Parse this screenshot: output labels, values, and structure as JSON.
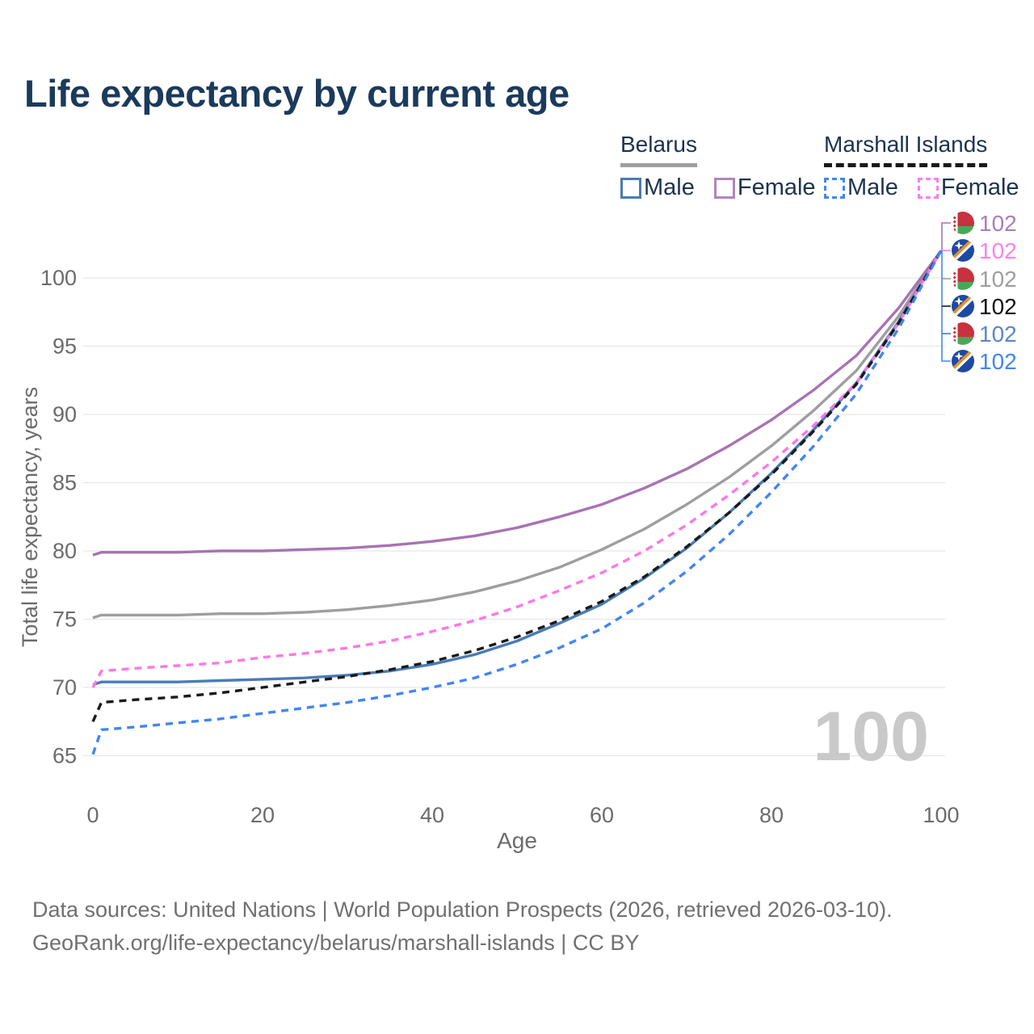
{
  "title": "Life expectancy by current age",
  "watermark_age": "100",
  "legend": {
    "groups": [
      {
        "name": "Belarus",
        "line_style": "solid",
        "underline_color": "#9e9e9e",
        "items": [
          {
            "label": "Male",
            "color": "#4a7bb7",
            "dashed": false
          },
          {
            "label": "Female",
            "color": "#b185bb",
            "dashed": false
          }
        ]
      },
      {
        "name": "Marshall Islands",
        "line_style": "dashed",
        "underline_color": "#1a1a1a",
        "items": [
          {
            "label": "Male",
            "color": "#4285f4",
            "dashed": true
          },
          {
            "label": "Female",
            "color": "#fc7ef0",
            "dashed": true
          }
        ]
      }
    ]
  },
  "chart_data": {
    "type": "line",
    "title": "Life expectancy by current age",
    "xlabel": "Age",
    "ylabel": "Total life expectancy, years",
    "xlim": [
      0,
      100
    ],
    "ylim": [
      65,
      102
    ],
    "x_ticks": [
      0,
      20,
      40,
      60,
      80,
      100
    ],
    "y_ticks": [
      65,
      70,
      75,
      80,
      85,
      90,
      95,
      100
    ],
    "grid": "horizontal",
    "legend_position": "top-right",
    "x": [
      0,
      1,
      5,
      10,
      15,
      20,
      25,
      30,
      35,
      40,
      45,
      50,
      55,
      60,
      65,
      70,
      75,
      80,
      85,
      90,
      95,
      100
    ],
    "series": [
      {
        "name": "Belarus — Both sexes",
        "country": "Belarus",
        "sex": "Both",
        "color": "#9e9e9e",
        "dash": false,
        "values": [
          75.1,
          75.3,
          75.3,
          75.3,
          75.4,
          75.4,
          75.5,
          75.7,
          76.0,
          76.4,
          77.0,
          77.8,
          78.8,
          80.1,
          81.6,
          83.4,
          85.4,
          87.7,
          90.3,
          93.2,
          97.2,
          102
        ]
      },
      {
        "name": "Belarus — Female",
        "country": "Belarus",
        "sex": "Female",
        "color": "#a873b3",
        "dash": false,
        "values": [
          79.7,
          79.9,
          79.9,
          79.9,
          80.0,
          80.0,
          80.1,
          80.2,
          80.4,
          80.7,
          81.1,
          81.7,
          82.5,
          83.4,
          84.6,
          86.0,
          87.7,
          89.6,
          91.8,
          94.3,
          97.8,
          102
        ]
      },
      {
        "name": "Belarus — Male",
        "country": "Belarus",
        "sex": "Male",
        "color": "#4a7bb7",
        "dash": false,
        "values": [
          70.2,
          70.4,
          70.4,
          70.4,
          70.5,
          70.6,
          70.7,
          70.9,
          71.2,
          71.7,
          72.4,
          73.4,
          74.7,
          76.1,
          78.0,
          80.2,
          82.8,
          85.7,
          88.9,
          92.3,
          96.8,
          102
        ]
      },
      {
        "name": "Marshall Islands — Female",
        "country": "Marshall Islands",
        "sex": "Female",
        "color": "#fb78e8",
        "dash": true,
        "values": [
          70.0,
          71.2,
          71.4,
          71.6,
          71.8,
          72.2,
          72.5,
          72.9,
          73.4,
          74.1,
          74.9,
          75.9,
          77.1,
          78.4,
          80.0,
          81.9,
          84.1,
          86.5,
          89.2,
          92.3,
          96.7,
          102
        ]
      },
      {
        "name": "Marshall Islands — Both sexes",
        "country": "Marshall Islands",
        "sex": "Both",
        "color": "#1a1a1a",
        "dash": true,
        "values": [
          67.5,
          68.9,
          69.1,
          69.3,
          69.6,
          70.0,
          70.4,
          70.8,
          71.3,
          71.9,
          72.7,
          73.7,
          74.9,
          76.3,
          78.1,
          80.3,
          82.8,
          85.6,
          88.8,
          92.2,
          96.7,
          102
        ]
      },
      {
        "name": "Marshall Islands — Male",
        "country": "Marshall Islands",
        "sex": "Male",
        "color": "#4285f4",
        "dash": true,
        "values": [
          65.1,
          66.9,
          67.1,
          67.4,
          67.7,
          68.1,
          68.5,
          68.9,
          69.4,
          70.0,
          70.7,
          71.7,
          72.9,
          74.3,
          76.2,
          78.5,
          81.2,
          84.3,
          87.7,
          91.5,
          96.3,
          102
        ]
      }
    ],
    "end_labels": [
      {
        "flag": "belarus",
        "value": "102",
        "color": "#a97fba"
      },
      {
        "flag": "marshall-islands",
        "value": "102",
        "color": "#ff80f0"
      },
      {
        "flag": "belarus",
        "value": "102",
        "color": "#9e9e9e"
      },
      {
        "flag": "marshall-islands",
        "value": "102",
        "color": "#111111"
      },
      {
        "flag": "belarus",
        "value": "102",
        "color": "#5b87c5"
      },
      {
        "flag": "marshall-islands",
        "value": "102",
        "color": "#4285f4"
      }
    ]
  },
  "footer": {
    "line1": "Data sources: United Nations | World Population Prospects (2026, retrieved 2026-03-10).",
    "line2": "GeoRank.org/life-expectancy/belarus/marshall-islands | CC BY"
  }
}
